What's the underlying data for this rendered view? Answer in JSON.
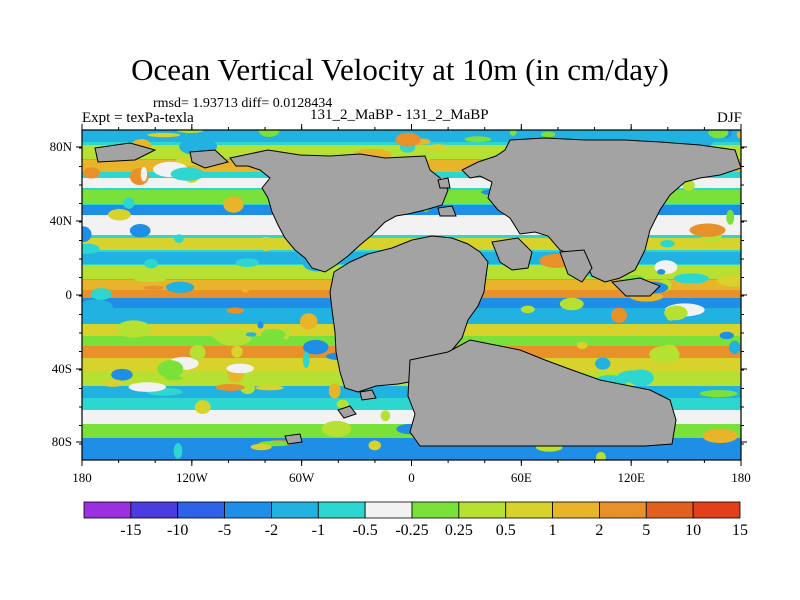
{
  "title": "Ocean Vertical Velocity at 10m (in cm/day)",
  "stats_line": "rmsd= 1.93713 diff= 0.0128434",
  "expt_label": "Expt = texPa-texla",
  "center_label": "131_2_MaBP - 131_2_MaBP",
  "season": "DJF",
  "lat_ticks": [
    "80N",
    "40N",
    "0",
    "40S",
    "80S"
  ],
  "lon_ticks": [
    "180",
    "120W",
    "60W",
    "0",
    "60E",
    "120E",
    "180"
  ],
  "colorbar": {
    "colors": [
      "#9b30e0",
      "#4b3ce0",
      "#2f62e6",
      "#1e8ee6",
      "#21b2e2",
      "#2ed6d0",
      "#f2f2f2",
      "#7ae03a",
      "#b6e032",
      "#d8d22c",
      "#e8b42a",
      "#e8902a",
      "#e2601f",
      "#e2401a"
    ],
    "labels": [
      "-15",
      "-10",
      "-5",
      "-2",
      "-1",
      "-0.5",
      "-0.25",
      "0.25",
      "0.5",
      "1",
      "2",
      "5",
      "10",
      "15"
    ]
  },
  "land_color": "#a3a3a3",
  "ocean_colors": [
    "#2ed6d0",
    "#21b2e2",
    "#7ae03a",
    "#b6e032",
    "#d8d22c",
    "#e8b42a",
    "#e8902a",
    "#f2f2f2",
    "#1e8ee6"
  ]
}
